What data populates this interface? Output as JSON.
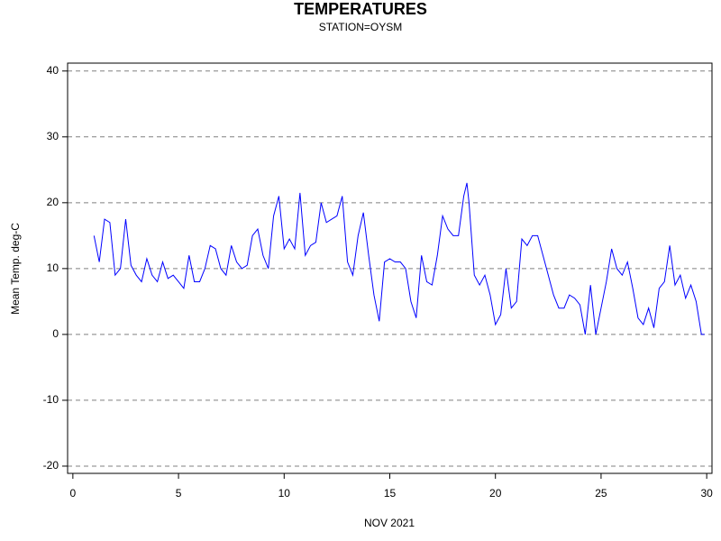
{
  "chart_data": {
    "type": "line",
    "title": "TEMPERATURES",
    "subtitle": "STATION=OYSM",
    "x_label": "NOV 2021",
    "y_label": "Mean Temp. deg-C",
    "x": [
      1.0,
      1.25,
      1.5,
      1.75,
      2.0,
      2.25,
      2.5,
      2.75,
      3.0,
      3.25,
      3.5,
      3.75,
      4.0,
      4.25,
      4.5,
      4.75,
      5.0,
      5.25,
      5.5,
      5.75,
      6.0,
      6.25,
      6.5,
      6.75,
      7.0,
      7.25,
      7.5,
      7.75,
      8.0,
      8.25,
      8.5,
      8.75,
      9.0,
      9.25,
      9.5,
      9.75,
      10.0,
      10.25,
      10.5,
      10.75,
      11.0,
      11.25,
      11.5,
      11.75,
      12.0,
      12.25,
      12.5,
      12.75,
      13.0,
      13.25,
      13.5,
      13.75,
      14.0,
      14.25,
      14.5,
      14.75,
      15.0,
      15.25,
      15.5,
      15.75,
      16.0,
      16.25,
      16.5,
      16.75,
      17.0,
      17.25,
      17.5,
      17.75,
      18.0,
      18.25,
      18.5,
      18.65,
      18.75,
      19.0,
      19.25,
      19.5,
      19.75,
      20.0,
      20.25,
      20.5,
      20.75,
      21.0,
      21.25,
      21.5,
      21.75,
      22.0,
      22.25,
      22.5,
      22.75,
      23.0,
      23.25,
      23.5,
      23.75,
      24.0,
      24.25,
      24.5,
      24.75,
      25.0,
      25.25,
      25.5,
      25.75,
      26.0,
      26.25,
      26.5,
      26.75,
      27.0,
      27.25,
      27.5,
      27.75,
      28.0,
      28.25,
      28.5,
      28.75,
      29.0,
      29.25,
      29.5,
      29.75,
      29.9
    ],
    "series": [
      {
        "name": "Mean Temp",
        "color": "#0000ff",
        "values": [
          15,
          11,
          17.5,
          17,
          9,
          10,
          17.5,
          10.5,
          9,
          8,
          11.5,
          9,
          8,
          11,
          8.5,
          9,
          8,
          7,
          12,
          8,
          8,
          10,
          13.5,
          13,
          10,
          9,
          13.5,
          11,
          10,
          10.5,
          15,
          16,
          12,
          10,
          18,
          21,
          13,
          14.5,
          13,
          21.5,
          12,
          13.5,
          14,
          20,
          17,
          17.5,
          18,
          21,
          11,
          9,
          15,
          18.5,
          12,
          6,
          2,
          11,
          11.5,
          11,
          11,
          10,
          5,
          2.5,
          12,
          8,
          7.5,
          12,
          18,
          16,
          15,
          15,
          21,
          23,
          20,
          9,
          7.5,
          9,
          6,
          1.5,
          3,
          10,
          4,
          5,
          14.5,
          13.5,
          15,
          15,
          12,
          9,
          6,
          4,
          4,
          6,
          5.5,
          4.5,
          0,
          7.5,
          0,
          4,
          8,
          13,
          10,
          9,
          11,
          7,
          2.5,
          1.5,
          4,
          1,
          7,
          8,
          13.5,
          7.5,
          9,
          5.5,
          7.5,
          5,
          0,
          0
        ]
      }
    ],
    "xlim": [
      -0.25,
      30.25
    ],
    "xticks": [
      0,
      5,
      10,
      15,
      20,
      25,
      30
    ],
    "ylim": [
      -21.1,
      41.2
    ],
    "yticks": [
      -20,
      -10,
      0,
      10,
      20,
      30,
      40
    ],
    "grid": true
  }
}
